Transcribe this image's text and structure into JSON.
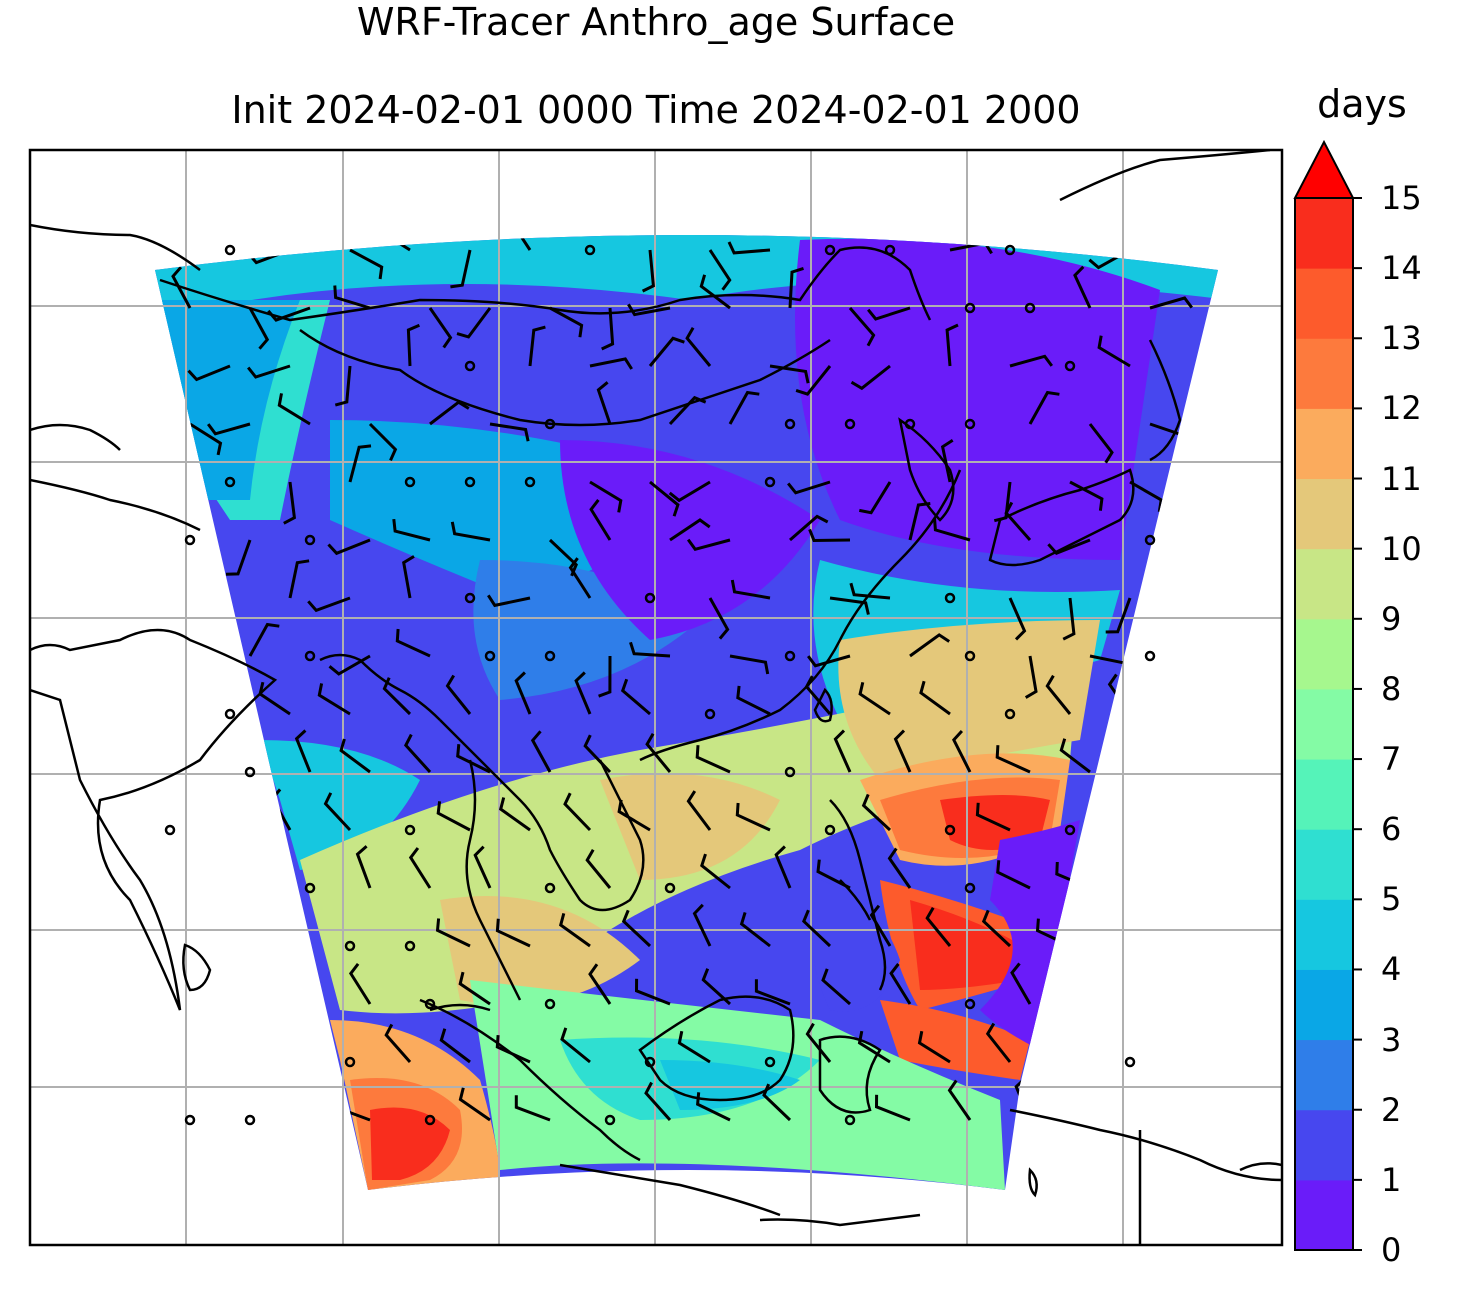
{
  "title": {
    "line1": "WRF-Tracer Anthro_age Surface",
    "line2": "Init 2024-02-01 0000 Time 2024-02-01 2000"
  },
  "colorbar": {
    "label": "days",
    "ticks": [
      "0",
      "1",
      "2",
      "3",
      "4",
      "5",
      "6",
      "7",
      "8",
      "9",
      "10",
      "11",
      "12",
      "13",
      "14",
      "15"
    ],
    "colors": [
      "#6a1cf9",
      "#4747ef",
      "#2f7ee9",
      "#0aa7e6",
      "#16c7e0",
      "#2fdfd1",
      "#55f3b9",
      "#84fba5",
      "#a6f78e",
      "#c8e686",
      "#e4c87a",
      "#fbab5d",
      "#fd7a3d",
      "#fd5b2c",
      "#f92d1d"
    ],
    "extend": "max",
    "extend_color": "#ff0000"
  },
  "map": {
    "projection": "lambert-conformal",
    "gridlines": true,
    "gridline_color": "#b0b0b0",
    "field": "anthro_age",
    "overlays": [
      "coastlines",
      "country-borders",
      "wind-barbs"
    ]
  }
}
